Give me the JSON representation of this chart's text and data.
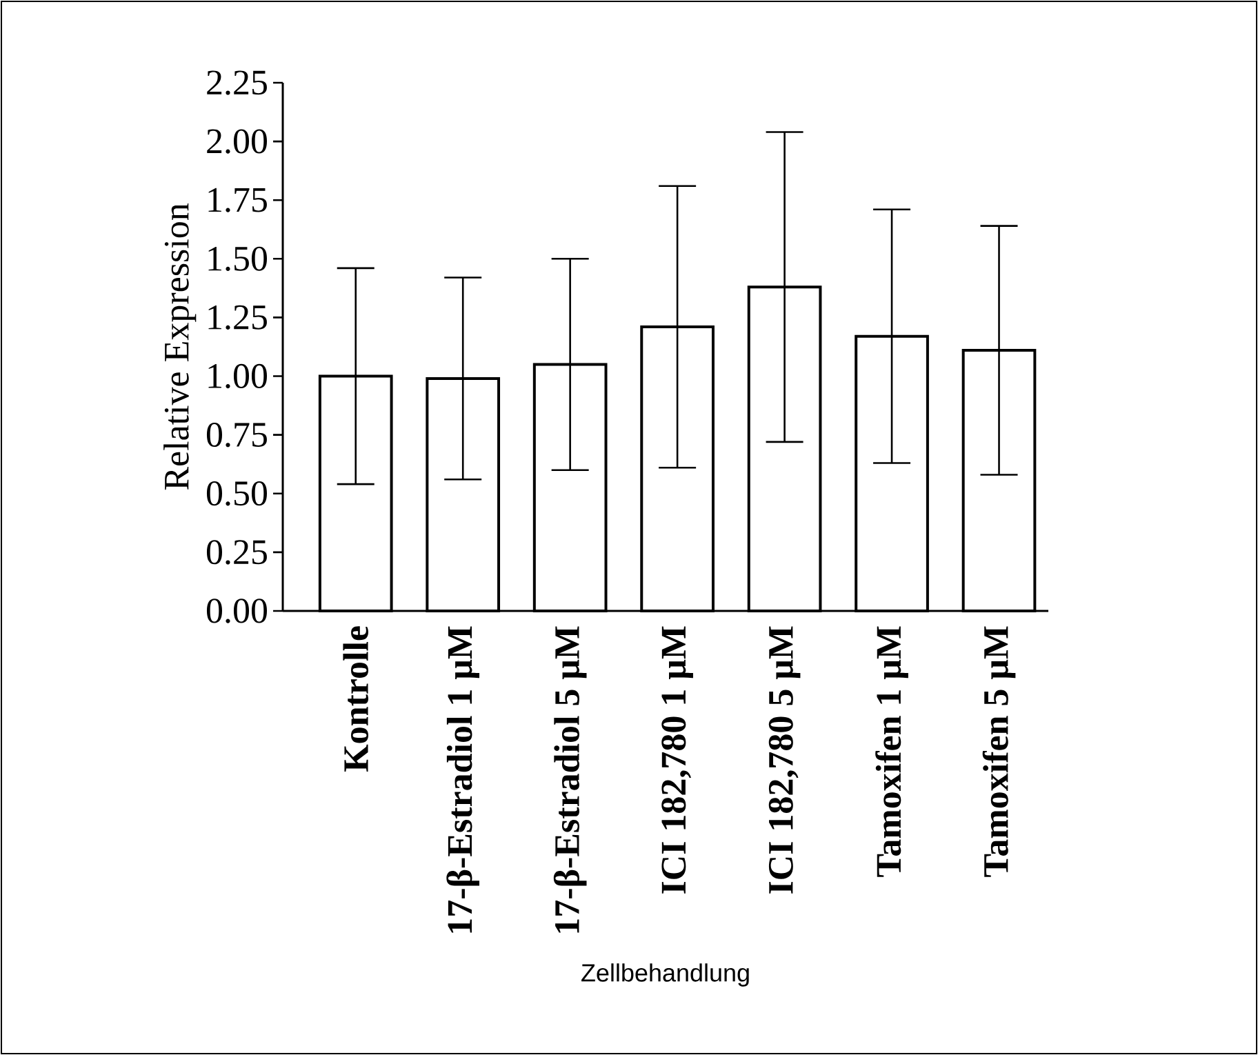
{
  "chart_data": {
    "type": "bar",
    "xlabel": "Zellbehandlung",
    "ylabel": "Relative Expression",
    "categories": [
      "Kontrolle",
      "17-β-Estradiol 1 μM",
      "17-β-Estradiol 5 μM",
      "ICI 182,780 1 μM",
      "ICI 182,780 5 μM",
      "Tamoxifen 1 μM",
      "Tamoxifen 5 μM"
    ],
    "values": [
      1.0,
      0.99,
      1.05,
      1.21,
      1.38,
      1.17,
      1.11
    ],
    "errors": [
      0.46,
      0.43,
      0.45,
      0.6,
      0.66,
      0.54,
      0.53
    ],
    "color": "#ffffff",
    "ylim": [
      0,
      2.25
    ],
    "yticks": [
      {
        "value": 0,
        "label": "0.00"
      },
      {
        "value": 0.25,
        "label": "0.25"
      },
      {
        "value": 0.5,
        "label": "0.50"
      },
      {
        "value": 0.75,
        "label": "0.75"
      },
      {
        "value": 1,
        "label": "1.00"
      },
      {
        "value": 1.25,
        "label": "1.25"
      },
      {
        "value": 1.5,
        "label": "1.50"
      },
      {
        "value": 1.75,
        "label": "1.75"
      },
      {
        "value": 2,
        "label": "2.00"
      },
      {
        "value": 2.25,
        "label": "2.25"
      }
    ]
  }
}
